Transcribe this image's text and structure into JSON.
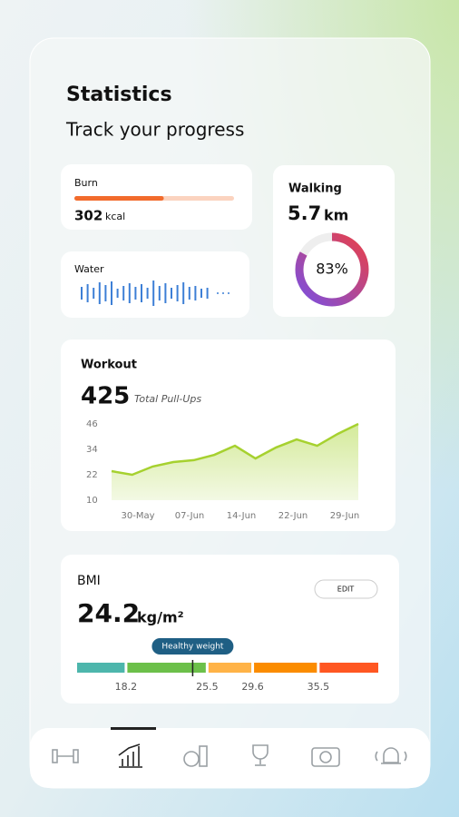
{
  "header": {
    "title": "Statistics",
    "subtitle": "Track your progress"
  },
  "burn": {
    "label": "Burn",
    "value": 302,
    "unit": "kcal",
    "progress": 0.56
  },
  "water": {
    "label": "Water",
    "levels": [
      14,
      20,
      12,
      24,
      18,
      26,
      10,
      16,
      22,
      14,
      20,
      12,
      28,
      16,
      22,
      12,
      18,
      24,
      14,
      16,
      10,
      12
    ]
  },
  "walking": {
    "label": "Walking",
    "value": 5.7,
    "unit": "km",
    "ring": {
      "value": 83,
      "value_label": "83%"
    }
  },
  "workout": {
    "title": "Workout",
    "total": 425,
    "total_label": "Total Pull-Ups",
    "chart": {
      "type": "line",
      "values": [
        23.7,
        22,
        25.9,
        28,
        28.9,
        31.4,
        35.7,
        29.7,
        34.9,
        38.7,
        35.7,
        41.3,
        46
      ],
      "color": "#a6d12f",
      "ylim": [
        10,
        46
      ],
      "yticks": [
        10,
        22,
        34,
        46
      ],
      "xticks": [
        "30-May",
        "07-Jun",
        "14-Jun",
        "22-Jun",
        "29-Jun"
      ]
    }
  },
  "bmi": {
    "label": "BMI",
    "value": 24.2,
    "unit": "kg/m²",
    "button": "EDIT",
    "badge": "Healthy weight",
    "xlim": [
      13.8,
      40.9
    ],
    "thresholds": [
      18.2,
      25.5,
      29.6,
      35.5
    ],
    "colors": [
      "#4db6ac",
      "#6cc04a",
      "#ffb347",
      "#fb8c00",
      "#ff5722"
    ]
  }
}
